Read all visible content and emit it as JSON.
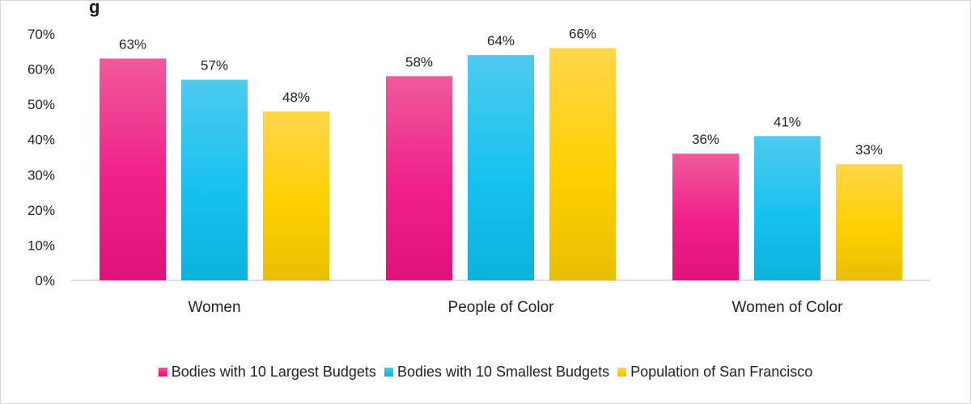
{
  "chart_data": {
    "type": "bar",
    "title": "g",
    "categories": [
      "Women",
      "People of Color",
      "Women of Color"
    ],
    "series": [
      {
        "name": "Bodies with 10 Largest Budgets",
        "values": [
          63,
          58,
          36
        ],
        "color_top": "#f05a9a",
        "color_mid": "#f01f8a",
        "color_bottom": "#e0137a"
      },
      {
        "name": "Bodies with 10 Smallest Budgets",
        "values": [
          57,
          64,
          41
        ],
        "color_top": "#4ecbef",
        "color_mid": "#16c2ee",
        "color_bottom": "#0bb2dd"
      },
      {
        "name": "Population of San Francisco",
        "values": [
          48,
          66,
          33
        ],
        "color_top": "#ffd64a",
        "color_mid": "#ffd000",
        "color_bottom": "#e8be00"
      }
    ],
    "ylim": [
      0,
      70
    ],
    "y_ticks": [
      0,
      10,
      20,
      30,
      40,
      50,
      60,
      70
    ],
    "value_suffix": "%",
    "legend_position": "bottom",
    "grid": false
  }
}
